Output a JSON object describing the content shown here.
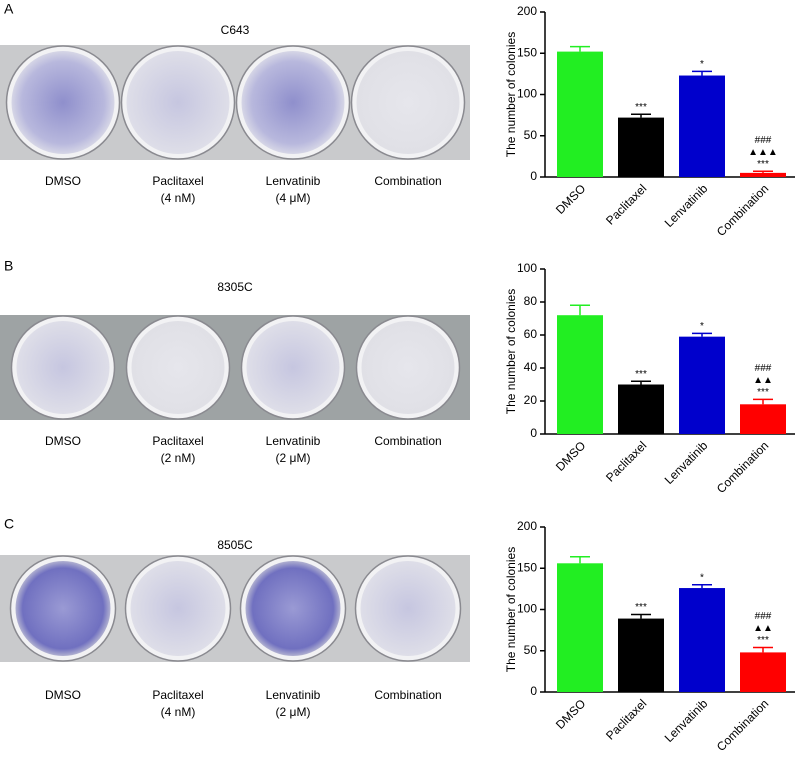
{
  "panels": [
    {
      "letter": "A",
      "title": "C643",
      "wells": [
        [
          "DMSO"
        ],
        [
          "Paclitaxel",
          "(4 nM)"
        ],
        [
          "Lenvatinib",
          "(4 μM)"
        ],
        [
          "Combination"
        ]
      ]
    },
    {
      "letter": "B",
      "title": "8305C",
      "wells": [
        [
          "DMSO"
        ],
        [
          "Paclitaxel",
          "(2 nM)"
        ],
        [
          "Lenvatinib",
          "(2 μM)"
        ],
        [
          "Combination"
        ]
      ]
    },
    {
      "letter": "C",
      "title": "8505C",
      "wells": [
        [
          "DMSO"
        ],
        [
          "Paclitaxel",
          "(4 nM)"
        ],
        [
          "Lenvatinib",
          "(2 μM)"
        ],
        [
          "Combination"
        ]
      ]
    }
  ],
  "chart_data": [
    {
      "type": "bar",
      "ylabel": "The number of colonies",
      "categories": [
        "DMSO",
        "Paclitaxel",
        "Lenvatinib",
        "Combination"
      ],
      "values": [
        152,
        72,
        123,
        5
      ],
      "errors": [
        6,
        4,
        5,
        2
      ],
      "colors": [
        "#22ee22",
        "#000000",
        "#0000cc",
        "#ff0000"
      ],
      "annotations": [
        [],
        [
          "***"
        ],
        [
          "*"
        ],
        [
          "###",
          "▲▲▲",
          "***"
        ]
      ],
      "ylim": [
        0,
        200
      ],
      "yticks": [
        0,
        50,
        100,
        150,
        200
      ]
    },
    {
      "type": "bar",
      "ylabel": "The number of colonies",
      "categories": [
        "DMSO",
        "Paclitaxel",
        "Lenvatinib",
        "Combination"
      ],
      "values": [
        72,
        30,
        59,
        18
      ],
      "errors": [
        6,
        2,
        2,
        3
      ],
      "colors": [
        "#22ee22",
        "#000000",
        "#0000cc",
        "#ff0000"
      ],
      "annotations": [
        [],
        [
          "***"
        ],
        [
          "*"
        ],
        [
          "###",
          "▲▲",
          "***"
        ]
      ],
      "ylim": [
        0,
        100
      ],
      "yticks": [
        0,
        20,
        40,
        60,
        80,
        100
      ]
    },
    {
      "type": "bar",
      "ylabel": "The number of colonies",
      "categories": [
        "DMSO",
        "Paclitaxel",
        "Lenvatinib",
        "Combination"
      ],
      "values": [
        156,
        89,
        126,
        48
      ],
      "errors": [
        8,
        5,
        4,
        6
      ],
      "colors": [
        "#22ee22",
        "#000000",
        "#0000cc",
        "#ff0000"
      ],
      "annotations": [
        [],
        [
          "***"
        ],
        [
          "*"
        ],
        [
          "###",
          "▲▲",
          "***"
        ]
      ],
      "ylim": [
        0,
        200
      ],
      "yticks": [
        0,
        50,
        100,
        150,
        200
      ]
    }
  ]
}
